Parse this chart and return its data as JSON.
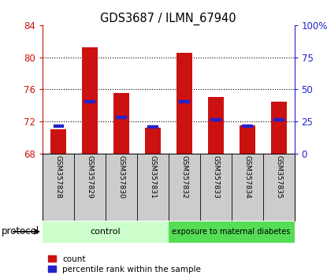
{
  "title": "GDS3687 / ILMN_67940",
  "samples": [
    "GSM357828",
    "GSM357829",
    "GSM357830",
    "GSM357831",
    "GSM357832",
    "GSM357833",
    "GSM357834",
    "GSM357835"
  ],
  "red_bar_tops": [
    71.0,
    81.2,
    75.5,
    71.2,
    80.5,
    75.0,
    71.5,
    74.5
  ],
  "blue_vals": [
    71.5,
    74.5,
    72.5,
    71.4,
    74.5,
    72.2,
    71.5,
    72.2
  ],
  "bar_base": 68.0,
  "ylim_left": [
    68,
    84
  ],
  "ylim_right": [
    0,
    100
  ],
  "yticks_left": [
    68,
    72,
    76,
    80,
    84
  ],
  "yticks_right": [
    0,
    25,
    50,
    75,
    100
  ],
  "ytick_labels_right": [
    "0",
    "25",
    "50",
    "75",
    "100%"
  ],
  "red_color": "#cc1111",
  "blue_color": "#2222cc",
  "bar_width": 0.5,
  "groups": [
    {
      "label": "control",
      "start": 0,
      "end": 3,
      "color": "#ccffcc"
    },
    {
      "label": "exposure to maternal diabetes",
      "start": 4,
      "end": 7,
      "color": "#55dd55"
    }
  ],
  "protocol_label": "protocol",
  "legend_count": "count",
  "legend_percentile": "percentile rank within the sample",
  "bg_plot": "#ffffff",
  "tick_area_bg": "#cccccc",
  "dotted_ticks": [
    72,
    76,
    80
  ]
}
